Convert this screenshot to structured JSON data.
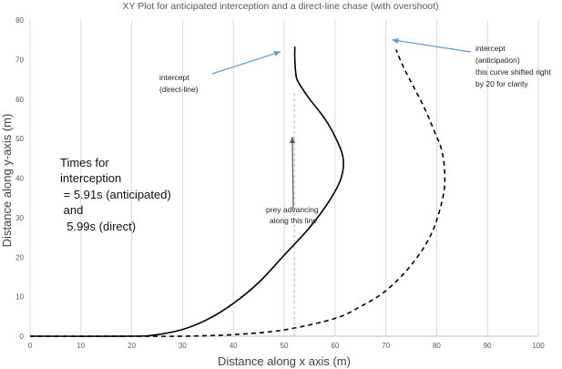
{
  "chart_data": {
    "type": "line",
    "title": "XY Plot for anticipated interception and a direct-line chase (with  overshoot)",
    "xlabel": "Distance along x axis (m)",
    "ylabel": "Distance along y-axis  (m)",
    "xlim": [
      0,
      100
    ],
    "ylim": [
      0,
      80
    ],
    "x_ticks": [
      "0",
      "10",
      "20",
      "30",
      "40",
      "50",
      "60",
      "70",
      "80",
      "90",
      "100"
    ],
    "y_ticks": [
      "0",
      "10",
      "20",
      "30",
      "40",
      "50",
      "60",
      "70",
      "80"
    ],
    "grid": "vertical",
    "legend": "none",
    "series": [
      {
        "style": "solid",
        "points": [
          [
            0,
            0
          ],
          [
            20,
            0
          ],
          [
            25,
            0.4
          ],
          [
            30,
            1.7
          ],
          [
            35,
            4.3
          ],
          [
            40,
            8.3
          ],
          [
            45,
            13.6
          ],
          [
            50,
            20.5
          ],
          [
            55,
            27.5
          ],
          [
            59,
            34.5
          ],
          [
            61.2,
            40
          ],
          [
            61.6,
            45
          ],
          [
            60.2,
            50
          ],
          [
            58,
            55
          ],
          [
            55,
            60
          ],
          [
            53.4,
            63
          ],
          [
            52.4,
            65.5
          ],
          [
            52.1,
            70
          ],
          [
            52.1,
            73.3
          ]
        ]
      },
      {
        "style": "dashed",
        "points": [
          [
            0,
            0
          ],
          [
            20,
            0
          ],
          [
            30,
            0
          ],
          [
            40,
            0.4
          ],
          [
            50,
            1.6
          ],
          [
            60,
            4.5
          ],
          [
            65,
            7.5
          ],
          [
            70,
            11.5
          ],
          [
            75,
            18
          ],
          [
            79,
            26
          ],
          [
            81.2,
            35
          ],
          [
            81.6,
            41
          ],
          [
            81,
            47
          ],
          [
            79.5,
            52
          ],
          [
            77.5,
            58
          ],
          [
            75.5,
            63
          ],
          [
            73.5,
            68
          ],
          [
            72,
            72.5
          ]
        ]
      },
      {
        "style": "dotted-vertical",
        "points": [
          [
            52,
            0
          ],
          [
            52,
            62
          ]
        ]
      }
    ],
    "annotations": [
      {
        "lines": [
          "intercept",
          "(direct-line)"
        ],
        "arrow_to": [
          49.3,
          72
        ]
      },
      {
        "lines": [
          "intercept",
          "(anticipation)",
          "this curve shifted right",
          " by 20 for clarity"
        ],
        "arrow_to": [
          71.2,
          75
        ]
      },
      {
        "lines": [
          "prey advancing",
          "along this line"
        ],
        "arrow_to": [
          51.6,
          50.5
        ]
      }
    ],
    "text_box": {
      "lines": [
        "Times for",
        "interception",
        " = 5.91s (anticipated)",
        " and",
        "  5.99s (direct)"
      ]
    }
  }
}
